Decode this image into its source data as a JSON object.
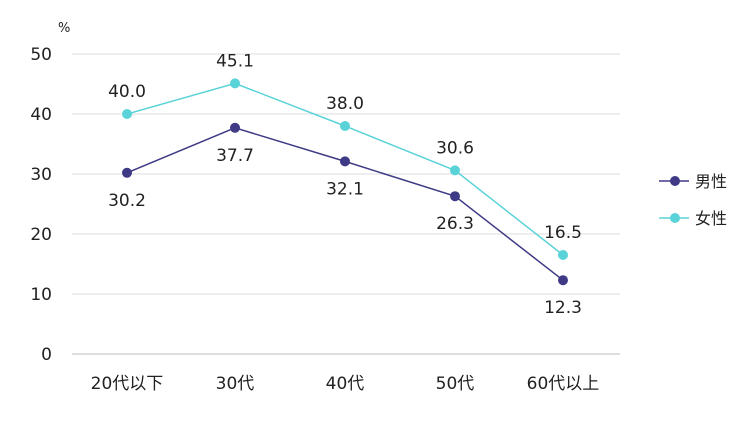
{
  "chart_data": {
    "type": "line",
    "title": "",
    "xlabel": "",
    "ylabel": "",
    "unit_label": "%",
    "categories": [
      "20代以下",
      "30代",
      "40代",
      "50代",
      "60代以上"
    ],
    "ylim": [
      0,
      50
    ],
    "yticks": [
      0,
      10,
      20,
      30,
      40,
      50
    ],
    "grid": true,
    "legend_position": "right",
    "series": [
      {
        "name": "男性",
        "color": "#3f3a85",
        "values": [
          30.2,
          37.7,
          32.1,
          26.3,
          12.3
        ],
        "label_side": [
          "below",
          "below",
          "below",
          "below",
          "below"
        ]
      },
      {
        "name": "女性",
        "color": "#5ad3d8",
        "values": [
          40.0,
          45.1,
          38.0,
          30.6,
          16.5
        ],
        "label_side": [
          "above",
          "above",
          "above",
          "above",
          "above"
        ]
      }
    ]
  }
}
